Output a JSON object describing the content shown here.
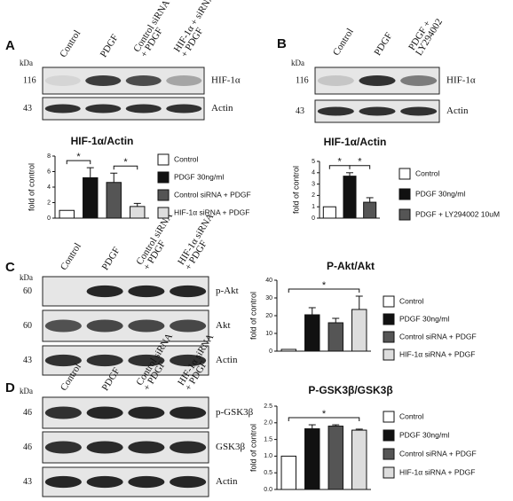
{
  "chart_data": [
    {
      "type": "bar",
      "title": "HIF-1α/Actin",
      "ylabel": "fold of control",
      "ylim": [
        0,
        8
      ],
      "yticks": [
        0,
        2,
        4,
        6,
        8
      ],
      "series": [
        {
          "name": "Control",
          "color": "#ffffff",
          "values": [
            1
          ],
          "errors": [
            0
          ]
        },
        {
          "name": "PDGF 30ng/ml",
          "color": "#111111",
          "values": [
            5.2
          ],
          "errors": [
            1.3
          ]
        },
        {
          "name": "Control siRNA + PDGF",
          "color": "#555555",
          "values": [
            4.6
          ],
          "errors": [
            1.2
          ]
        },
        {
          "name": "HIF-1α siRNA + PDGF",
          "color": "#dddddd",
          "values": [
            1.5
          ],
          "errors": [
            0.4
          ]
        }
      ],
      "significance": [
        {
          "label": "*",
          "between": [
            0,
            1
          ]
        },
        {
          "label": "*",
          "between": [
            2,
            3
          ]
        }
      ]
    },
    {
      "type": "bar",
      "title": "HIF-1α/Actin",
      "ylabel": "fold of control",
      "ylim": [
        0,
        5
      ],
      "yticks": [
        0,
        1,
        2,
        3,
        4,
        5
      ],
      "series": [
        {
          "name": "Control",
          "color": "#ffffff",
          "values": [
            1
          ],
          "errors": [
            0
          ]
        },
        {
          "name": "PDGF 30ng/ml",
          "color": "#111111",
          "values": [
            3.7
          ],
          "errors": [
            0.3
          ]
        },
        {
          "name": "PDGF + LY294002 10uM",
          "color": "#555555",
          "values": [
            1.4
          ],
          "errors": [
            0.4
          ]
        }
      ],
      "significance": [
        {
          "label": "*",
          "between": [
            0,
            1
          ]
        },
        {
          "label": "*",
          "between": [
            1,
            2
          ]
        }
      ]
    },
    {
      "type": "bar",
      "title": "P-Akt/Akt",
      "ylabel": "fold of control",
      "ylim": [
        0,
        40
      ],
      "yticks": [
        0,
        10,
        20,
        30,
        40
      ],
      "series": [
        {
          "name": "Control",
          "color": "#ffffff",
          "values": [
            1
          ],
          "errors": [
            0
          ]
        },
        {
          "name": "PDGF 30ng/ml",
          "color": "#111111",
          "values": [
            20.5
          ],
          "errors": [
            4
          ]
        },
        {
          "name": "Control siRNA + PDGF",
          "color": "#555555",
          "values": [
            16
          ],
          "errors": [
            2.5
          ]
        },
        {
          "name": "HIF-1α siRNA + PDGF",
          "color": "#dddddd",
          "values": [
            23.5
          ],
          "errors": [
            7.5
          ]
        }
      ],
      "significance": [
        {
          "label": "*",
          "between": [
            0,
            3
          ]
        }
      ]
    },
    {
      "type": "bar",
      "title": "P-GSK3β/GSK3β",
      "ylabel": "fold of control",
      "ylim": [
        0,
        2.5
      ],
      "yticks": [
        {
          "value": 0,
          "label": "0.0"
        },
        0.5,
        {
          "value": 1,
          "label": "1.0"
        },
        1.5,
        {
          "value": 2,
          "label": "2.0"
        },
        2.5
      ],
      "series": [
        {
          "name": "Control",
          "color": "#ffffff",
          "values": [
            1
          ],
          "errors": [
            0
          ]
        },
        {
          "name": "PDGF 30ng/ml",
          "color": "#111111",
          "values": [
            1.82
          ],
          "errors": [
            0.12
          ]
        },
        {
          "name": "Control siRNA + PDGF",
          "color": "#555555",
          "values": [
            1.9
          ],
          "errors": [
            0.04
          ]
        },
        {
          "name": "HIF-1α siRNA + PDGF",
          "color": "#dddddd",
          "values": [
            1.78
          ],
          "errors": [
            0.03
          ]
        }
      ],
      "significance": [
        {
          "label": "*",
          "between": [
            0,
            3
          ]
        }
      ]
    }
  ],
  "blots": [
    {
      "panel": "A",
      "kda": "kDa",
      "lanes": [
        [
          "Control"
        ],
        [
          "PDGF"
        ],
        [
          "Control siRNA",
          "+ PDGF"
        ],
        [
          "HIF-1α + siRNA",
          "+ PDGF"
        ]
      ],
      "rows": [
        {
          "mw": "116",
          "label": "HIF-1α"
        },
        {
          "mw": "43",
          "label": "Actin"
        }
      ]
    },
    {
      "panel": "B",
      "kda": "kDa",
      "lanes": [
        [
          "Control"
        ],
        [
          "PDGF"
        ],
        [
          "PDGF +",
          "LY294002"
        ]
      ],
      "rows": [
        {
          "mw": "116",
          "label": "HIF-1α"
        },
        {
          "mw": "43",
          "label": "Actin"
        }
      ]
    },
    {
      "panel": "C",
      "kda": "kDa",
      "lanes": [
        [
          "Control"
        ],
        [
          "PDGF"
        ],
        [
          "Control siRNA",
          "+ PDGF"
        ],
        [
          "HIF-1α siRNA",
          "+ PDGF"
        ]
      ],
      "rows": [
        {
          "mw": "60",
          "label": "p-Akt"
        },
        {
          "mw": "60",
          "label": "Akt"
        },
        {
          "mw": "43",
          "label": "Actin"
        }
      ]
    },
    {
      "panel": "D",
      "kda": "kDa",
      "lanes": [
        [
          "Control"
        ],
        [
          "PDGF"
        ],
        [
          "Control siRNA",
          "+ PDGF"
        ],
        [
          "HIF-1α siRNA",
          "+ PDGF"
        ]
      ],
      "rows": [
        {
          "mw": "46",
          "label": "p-GSK3β"
        },
        {
          "mw": "46",
          "label": "GSK3β"
        },
        {
          "mw": "43",
          "label": "Actin"
        }
      ]
    }
  ]
}
